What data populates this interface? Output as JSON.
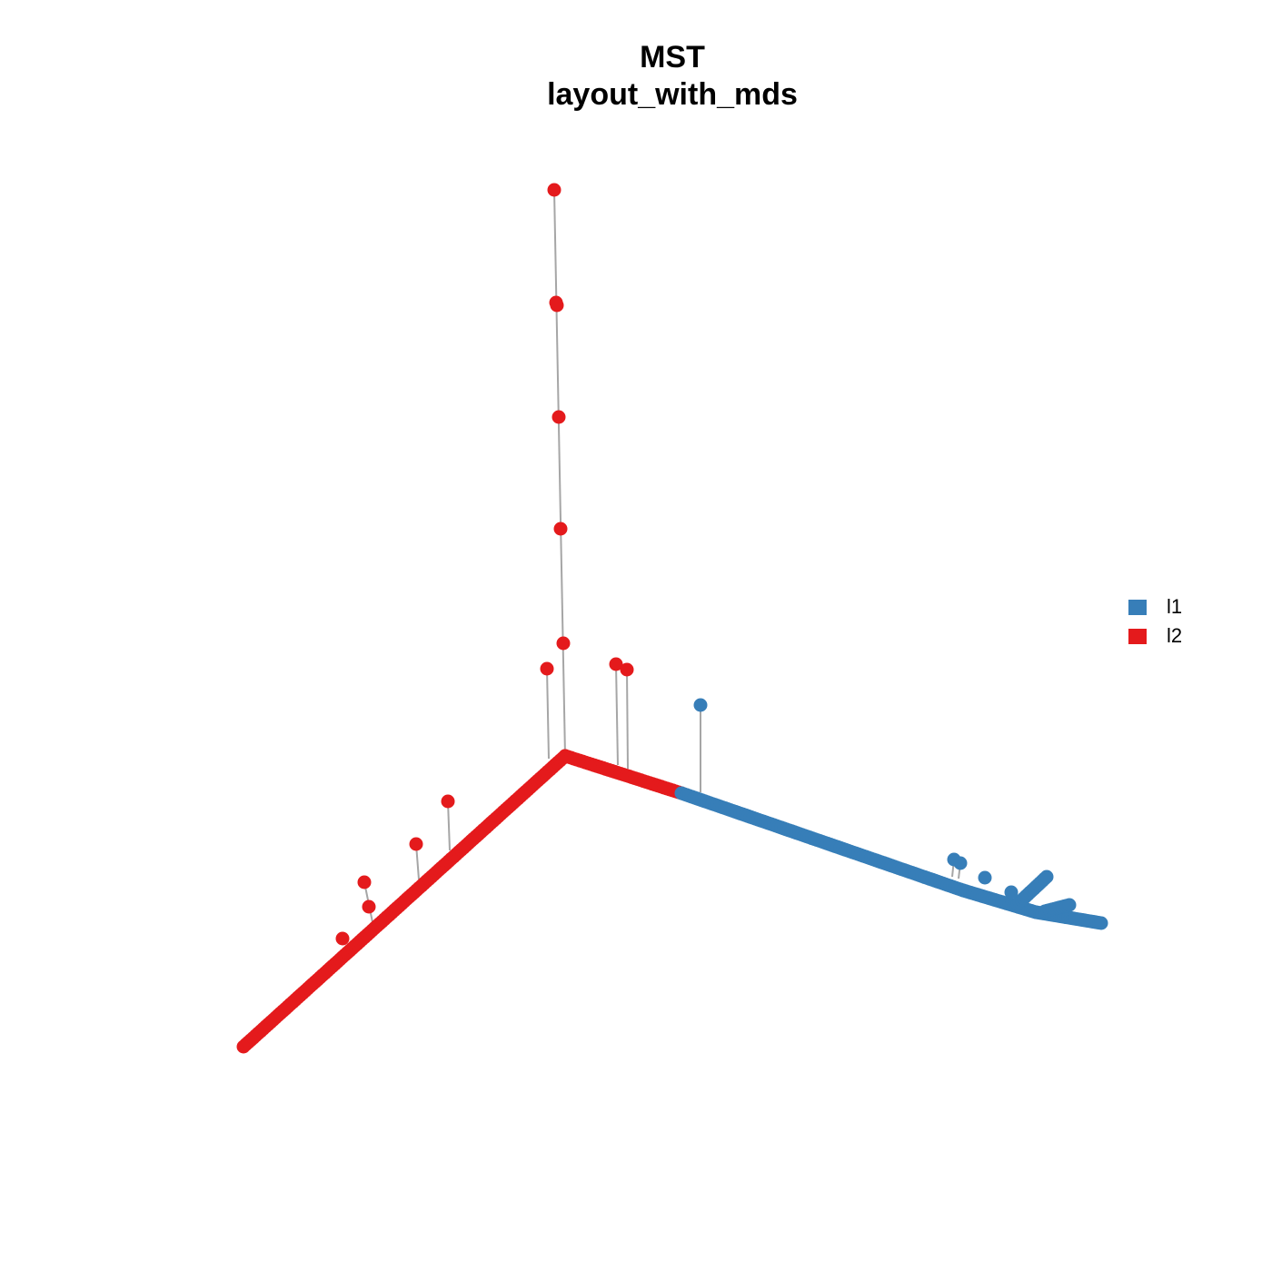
{
  "title": "MST",
  "subtitle": "layout_with_mds",
  "colors": {
    "l1": "#377EB8",
    "l2": "#E41A1C",
    "edge": "#A6A6A6"
  },
  "legend": [
    {
      "label": "l1",
      "color": "#377EB8"
    },
    {
      "label": "l2",
      "color": "#E41A1C"
    }
  ]
}
